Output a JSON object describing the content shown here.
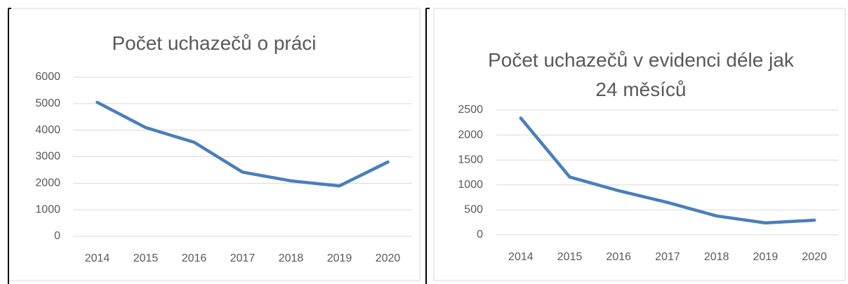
{
  "chart_data": [
    {
      "type": "line",
      "title": "Počet uchazečů o práci",
      "categories": [
        "2014",
        "2015",
        "2016",
        "2017",
        "2018",
        "2019",
        "2020"
      ],
      "values": [
        5050,
        4100,
        3545,
        2420,
        2090,
        1900,
        2800
      ],
      "color": "#4a7ebb",
      "ylim": [
        0,
        6000
      ],
      "yticks": [
        0,
        1000,
        2000,
        3000,
        4000,
        5000,
        6000
      ],
      "grid": true
    },
    {
      "type": "line",
      "title": "Počet uchazečů v evidenci déle jak 24 měsíců",
      "categories": [
        "2014",
        "2015",
        "2016",
        "2017",
        "2018",
        "2019",
        "2020"
      ],
      "values": [
        2340,
        1160,
        885,
        650,
        380,
        240,
        295
      ],
      "color": "#4a7ebb",
      "ylim": [
        0,
        2500
      ],
      "yticks": [
        0,
        500,
        1000,
        1500,
        2000,
        2500
      ],
      "grid": true
    }
  ]
}
